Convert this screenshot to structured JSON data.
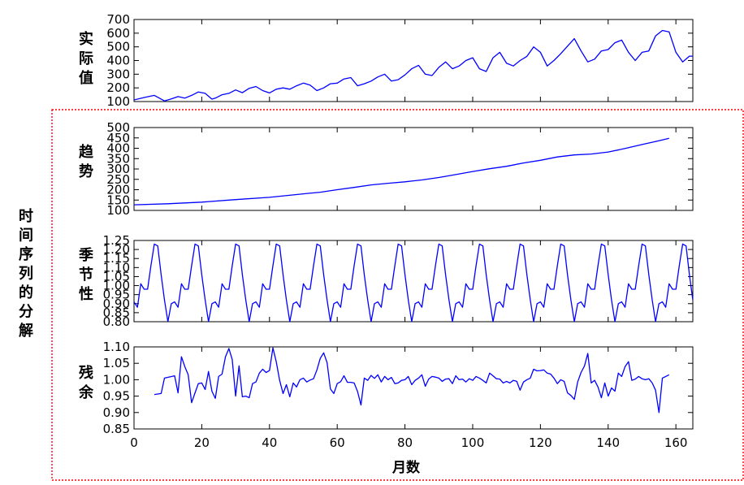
{
  "chart_data": [
    {
      "type": "line",
      "ylabel": "实际值",
      "ylim": [
        100,
        700
      ],
      "yticks": [
        "100",
        "200",
        "300",
        "400",
        "500",
        "600",
        "700"
      ],
      "xlim": [
        0,
        165
      ],
      "color": "#0000ff",
      "series": [
        {
          "x": [
            0,
            3,
            6,
            9,
            11,
            13,
            15,
            17,
            19,
            21,
            23,
            24,
            26,
            28,
            30,
            32,
            34,
            36,
            38,
            40,
            42,
            44,
            46,
            48,
            50,
            52,
            54,
            56,
            58,
            60,
            62,
            64,
            66,
            68,
            70,
            72,
            74,
            76,
            78,
            80,
            82,
            84,
            86,
            88,
            90,
            92,
            94,
            96,
            98,
            100,
            102,
            104,
            106,
            108,
            110,
            112,
            114,
            116,
            118,
            120,
            122,
            124,
            126,
            128,
            130,
            132,
            134,
            136,
            138,
            140,
            142,
            144,
            146,
            148,
            150,
            152,
            154,
            156,
            158,
            160,
            162,
            164,
            165
          ],
          "values": [
            112,
            130,
            145,
            105,
            119,
            136,
            125,
            145,
            170,
            160,
            118,
            125,
            150,
            160,
            185,
            165,
            197,
            210,
            180,
            163,
            190,
            200,
            190,
            215,
            235,
            220,
            180,
            200,
            230,
            235,
            265,
            275,
            215,
            230,
            250,
            280,
            300,
            250,
            260,
            295,
            340,
            365,
            300,
            290,
            350,
            390,
            340,
            360,
            400,
            420,
            340,
            320,
            420,
            460,
            380,
            360,
            400,
            430,
            500,
            460,
            360,
            400,
            450,
            505,
            560,
            470,
            390,
            410,
            470,
            480,
            530,
            550,
            460,
            400,
            460,
            470,
            580,
            620,
            610,
            460,
            390,
            432,
            432
          ]
        }
      ]
    },
    {
      "type": "line",
      "ylabel": "趋势",
      "ylim": [
        100,
        500
      ],
      "yticks": [
        "100",
        "150",
        "200",
        "250",
        "300",
        "350",
        "400",
        "450",
        "500"
      ],
      "xlim": [
        0,
        165
      ],
      "color": "#0000ff",
      "series": [
        {
          "x": [
            0,
            10,
            20,
            30,
            40,
            50,
            55,
            60,
            65,
            70,
            75,
            80,
            85,
            90,
            95,
            100,
            105,
            110,
            115,
            120,
            125,
            130,
            135,
            140,
            145,
            150,
            155,
            158
          ],
          "values": [
            127,
            132,
            140,
            152,
            163,
            180,
            188,
            200,
            211,
            223,
            231,
            238,
            247,
            259,
            273,
            288,
            301,
            313,
            329,
            342,
            358,
            368,
            372,
            382,
            399,
            418,
            436,
            448
          ]
        }
      ]
    },
    {
      "type": "line",
      "ylabel": "季节性",
      "ylim": [
        0.8,
        1.25
      ],
      "yticks": [
        "0.80",
        "0.85",
        "0.90",
        "0.95",
        "1.00",
        "1.05",
        "1.10",
        "1.15",
        "1.20",
        "1.25"
      ],
      "xlim": [
        0,
        165
      ],
      "color": "#0000ff",
      "pattern_period": 12,
      "pattern": [
        0.91,
        0.88,
        1.01,
        0.98,
        0.98,
        1.11,
        1.23,
        1.22,
        1.06,
        0.92,
        0.8,
        0.9
      ],
      "series": [
        {
          "x": [],
          "values": []
        }
      ]
    },
    {
      "type": "line",
      "ylabel": "残余",
      "xlabel": "月数",
      "ylim": [
        0.85,
        1.1
      ],
      "yticks": [
        "0.85",
        "0.90",
        "0.95",
        "1.00",
        "1.05",
        "1.10"
      ],
      "xlim": [
        0,
        165
      ],
      "xticks": [
        "0",
        "20",
        "40",
        "60",
        "80",
        "100",
        "120",
        "140",
        "160"
      ],
      "color": "#0000ff",
      "series": [
        {
          "x": [
            6,
            8,
            9,
            12,
            13,
            14,
            15,
            16,
            17,
            18,
            19,
            20,
            21,
            22,
            23,
            24,
            25,
            26,
            27,
            28,
            29,
            30,
            31,
            32,
            33,
            34,
            35,
            36,
            37,
            38,
            39,
            40,
            41,
            42,
            43,
            44,
            45,
            46,
            47,
            48,
            49,
            50,
            51,
            52,
            53,
            54,
            55,
            56,
            57,
            58,
            59,
            60,
            61,
            62,
            63,
            64,
            65,
            66,
            67,
            68,
            69,
            70,
            71,
            72,
            73,
            74,
            75,
            76,
            77,
            78,
            79,
            80,
            81,
            82,
            83,
            84,
            85,
            86,
            87,
            88,
            89,
            90,
            91,
            92,
            93,
            94,
            95,
            96,
            97,
            98,
            99,
            100,
            101,
            102,
            103,
            104,
            105,
            106,
            107,
            108,
            109,
            110,
            111,
            112,
            113,
            114,
            115,
            116,
            117,
            118,
            119,
            120,
            121,
            122,
            123,
            124,
            125,
            126,
            127,
            128,
            129,
            130,
            131,
            132,
            133,
            134,
            135,
            136,
            137,
            138,
            139,
            140,
            141,
            142,
            143,
            144,
            145,
            146,
            147,
            148,
            149,
            150,
            151,
            152,
            153,
            154,
            155,
            156,
            157,
            158
          ],
          "values": [
            0.955,
            0.958,
            1.005,
            1.012,
            0.96,
            1.07,
            1.04,
            1.015,
            0.93,
            0.96,
            0.988,
            0.99,
            0.97,
            1.025,
            0.965,
            0.943,
            1.01,
            1.017,
            1.07,
            1.095,
            1.062,
            0.95,
            1.042,
            0.948,
            0.95,
            0.945,
            0.988,
            0.993,
            1.02,
            1.032,
            1.022,
            1.028,
            1.097,
            1.055,
            0.998,
            0.958,
            0.985,
            0.948,
            0.99,
            0.978,
            1.0,
            1.005,
            0.993,
            0.999,
            1.003,
            1.03,
            1.065,
            1.082,
            1.052,
            0.972,
            0.958,
            0.988,
            0.994,
            1.012,
            0.992,
            0.992,
            0.99,
            0.964,
            0.923,
            1.005,
            0.998,
            1.013,
            1.004,
            1.015,
            0.993,
            1.01,
            1.0,
            1.007,
            0.988,
            0.99,
            0.998,
            1.0,
            1.01,
            0.985,
            0.998,
            1.005,
            1.015,
            0.98,
            1.002,
            1.01,
            1.008,
            1.005,
            0.995,
            1.002,
            1.003,
            0.988,
            1.012,
            1.0,
            1.002,
            0.993,
            1.003,
            0.998,
            1.01,
            1.005,
            0.998,
            0.99,
            1.02,
            1.012,
            1.003,
            1.002,
            0.99,
            0.995,
            0.99,
            0.998,
            0.995,
            0.968,
            0.993,
            1.0,
            1.005,
            1.032,
            1.027,
            1.028,
            1.03,
            1.02,
            1.017,
            1.005,
            0.988,
            1.0,
            0.995,
            0.96,
            0.952,
            0.94,
            0.993,
            1.022,
            1.042,
            1.08,
            0.99,
            0.998,
            0.978,
            0.945,
            0.99,
            0.95,
            0.975,
            0.965,
            1.02,
            1.01,
            1.04,
            1.055,
            0.998,
            1.002,
            1.01,
            1.003,
            1.0,
            1.003,
            0.99,
            0.968,
            0.9,
            1.005,
            1.01,
            1.015
          ]
        }
      ]
    }
  ],
  "side_label": "时间序列的分解",
  "panel_labels": [
    "实际值",
    "趋势",
    "季节性",
    "残余"
  ],
  "xlabel": "月数"
}
